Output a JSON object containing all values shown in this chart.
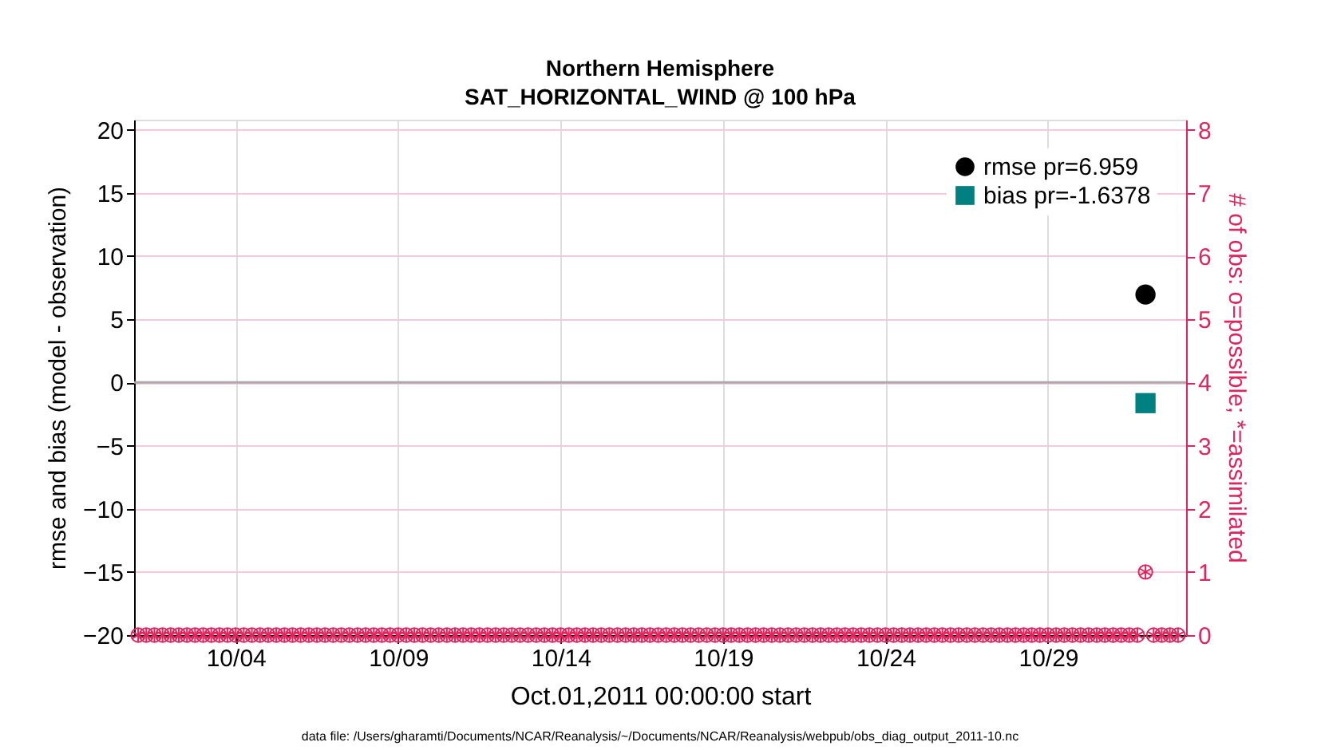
{
  "chart_data": {
    "type": "scatter",
    "title": "Northern Hemisphere",
    "subtitle": "SAT_HORIZONTAL_WIND @ 100 hPa",
    "xlabel": "Oct.01,2011 00:00:00 start",
    "ylabel": "rmse and bias (model - observation)",
    "y2label": "# of obs: o=possible; *=assimilated",
    "annotations": [
      "data file: /Users/gharamti/Documents/NCAR/Reanalysis/~/Documents/NCAR/Reanalysis/webpub/obs_diag_output_2011-10.nc"
    ],
    "x": [
      "2011-10-01T00:00",
      "2011-10-01T06:00",
      "2011-10-01T12:00",
      "2011-10-01T18:00",
      "2011-10-02T00:00",
      "2011-10-02T06:00",
      "2011-10-02T12:00",
      "2011-10-02T18:00",
      "2011-10-03T00:00",
      "2011-10-03T06:00",
      "2011-10-03T12:00",
      "2011-10-03T18:00",
      "2011-10-04T00:00",
      "2011-10-04T06:00",
      "2011-10-04T12:00",
      "2011-10-04T18:00",
      "2011-10-05T00:00",
      "2011-10-05T06:00",
      "2011-10-05T12:00",
      "2011-10-05T18:00",
      "2011-10-06T00:00",
      "2011-10-06T06:00",
      "2011-10-06T12:00",
      "2011-10-06T18:00",
      "2011-10-07T00:00",
      "2011-10-07T06:00",
      "2011-10-07T12:00",
      "2011-10-07T18:00",
      "2011-10-08T00:00",
      "2011-10-08T06:00",
      "2011-10-08T12:00",
      "2011-10-08T18:00",
      "2011-10-09T00:00",
      "2011-10-09T06:00",
      "2011-10-09T12:00",
      "2011-10-09T18:00",
      "2011-10-10T00:00",
      "2011-10-10T06:00",
      "2011-10-10T12:00",
      "2011-10-10T18:00",
      "2011-10-11T00:00",
      "2011-10-11T06:00",
      "2011-10-11T12:00",
      "2011-10-11T18:00",
      "2011-10-12T00:00",
      "2011-10-12T06:00",
      "2011-10-12T12:00",
      "2011-10-12T18:00",
      "2011-10-13T00:00",
      "2011-10-13T06:00",
      "2011-10-13T12:00",
      "2011-10-13T18:00",
      "2011-10-14T00:00",
      "2011-10-14T06:00",
      "2011-10-14T12:00",
      "2011-10-14T18:00",
      "2011-10-15T00:00",
      "2011-10-15T06:00",
      "2011-10-15T12:00",
      "2011-10-15T18:00",
      "2011-10-16T00:00",
      "2011-10-16T06:00",
      "2011-10-16T12:00",
      "2011-10-16T18:00",
      "2011-10-17T00:00",
      "2011-10-17T06:00",
      "2011-10-17T12:00",
      "2011-10-17T18:00",
      "2011-10-18T00:00",
      "2011-10-18T06:00",
      "2011-10-18T12:00",
      "2011-10-18T18:00",
      "2011-10-19T00:00",
      "2011-10-19T06:00",
      "2011-10-19T12:00",
      "2011-10-19T18:00",
      "2011-10-20T00:00",
      "2011-10-20T06:00",
      "2011-10-20T12:00",
      "2011-10-20T18:00",
      "2011-10-21T00:00",
      "2011-10-21T06:00",
      "2011-10-21T12:00",
      "2011-10-21T18:00",
      "2011-10-22T00:00",
      "2011-10-22T06:00",
      "2011-10-22T12:00",
      "2011-10-22T18:00",
      "2011-10-23T00:00",
      "2011-10-23T06:00",
      "2011-10-23T12:00",
      "2011-10-23T18:00",
      "2011-10-24T00:00",
      "2011-10-24T06:00",
      "2011-10-24T12:00",
      "2011-10-24T18:00",
      "2011-10-25T00:00",
      "2011-10-25T06:00",
      "2011-10-25T12:00",
      "2011-10-25T18:00",
      "2011-10-26T00:00",
      "2011-10-26T06:00",
      "2011-10-26T12:00",
      "2011-10-26T18:00",
      "2011-10-27T00:00",
      "2011-10-27T06:00",
      "2011-10-27T12:00",
      "2011-10-27T18:00",
      "2011-10-28T00:00",
      "2011-10-28T06:00",
      "2011-10-28T12:00",
      "2011-10-28T18:00",
      "2011-10-29T00:00",
      "2011-10-29T06:00",
      "2011-10-29T12:00",
      "2011-10-29T18:00",
      "2011-10-30T00:00",
      "2011-10-30T06:00",
      "2011-10-30T12:00",
      "2011-10-30T18:00",
      "2011-10-31T00:00",
      "2011-10-31T06:00",
      "2011-10-31T12:00",
      "2011-10-31T18:00",
      "2011-11-01T00:00",
      "2011-11-01T06:00",
      "2011-11-01T12:00",
      "2011-11-01T18:00",
      "2011-11-02T00:00"
    ],
    "series": [
      {
        "name": "rmse pr=6.959",
        "color": "#000000",
        "marker": "circle",
        "x": [
          "2011-11-01T00:00"
        ],
        "values": [
          6.959
        ]
      },
      {
        "name": "bias pr=-1.6378",
        "color": "#008080",
        "marker": "square",
        "x": [
          "2011-11-01T00:00"
        ],
        "values": [
          -1.6378
        ]
      },
      {
        "color": "#e0245e",
        "marker": "circle",
        "axis": "y2",
        "values": [
          0,
          0,
          0,
          0,
          0,
          0,
          0,
          0,
          0,
          0,
          0,
          0,
          0,
          0,
          0,
          0,
          0,
          0,
          0,
          0,
          0,
          0,
          0,
          0,
          0,
          0,
          0,
          0,
          0,
          0,
          0,
          0,
          0,
          0,
          0,
          0,
          0,
          0,
          0,
          0,
          0,
          0,
          0,
          0,
          0,
          0,
          0,
          0,
          0,
          0,
          0,
          0,
          0,
          0,
          0,
          0,
          0,
          0,
          0,
          0,
          0,
          0,
          0,
          0,
          0,
          0,
          0,
          0,
          0,
          0,
          0,
          0,
          0,
          0,
          0,
          0,
          0,
          0,
          0,
          0,
          0,
          0,
          0,
          0,
          0,
          0,
          0,
          0,
          0,
          0,
          0,
          0,
          0,
          0,
          0,
          0,
          0,
          0,
          0,
          0,
          0,
          0,
          0,
          0,
          0,
          0,
          0,
          0,
          0,
          0,
          0,
          0,
          0,
          0,
          0,
          0,
          0,
          0,
          0,
          0,
          0,
          0,
          0,
          0,
          1,
          0,
          0,
          0,
          0
        ]
      },
      {
        "color": "#e0245e",
        "marker": "cross",
        "axis": "y2",
        "values": [
          0,
          0,
          0,
          0,
          0,
          0,
          0,
          0,
          0,
          0,
          0,
          0,
          0,
          0,
          0,
          0,
          0,
          0,
          0,
          0,
          0,
          0,
          0,
          0,
          0,
          0,
          0,
          0,
          0,
          0,
          0,
          0,
          0,
          0,
          0,
          0,
          0,
          0,
          0,
          0,
          0,
          0,
          0,
          0,
          0,
          0,
          0,
          0,
          0,
          0,
          0,
          0,
          0,
          0,
          0,
          0,
          0,
          0,
          0,
          0,
          0,
          0,
          0,
          0,
          0,
          0,
          0,
          0,
          0,
          0,
          0,
          0,
          0,
          0,
          0,
          0,
          0,
          0,
          0,
          0,
          0,
          0,
          0,
          0,
          0,
          0,
          0,
          0,
          0,
          0,
          0,
          0,
          0,
          0,
          0,
          0,
          0,
          0,
          0,
          0,
          0,
          0,
          0,
          0,
          0,
          0,
          0,
          0,
          0,
          0,
          0,
          0,
          0,
          0,
          0,
          0,
          0,
          0,
          0,
          0,
          0,
          0,
          0,
          0,
          1,
          0,
          0,
          0,
          0
        ]
      }
    ],
    "xlim": [
      "2011-09-30T21:00",
      "2011-11-02T06:00"
    ],
    "xticks": [
      {
        "value": "2011-10-04T00:00",
        "label": "10/04"
      },
      {
        "value": "2011-10-09T00:00",
        "label": "10/09"
      },
      {
        "value": "2011-10-14T00:00",
        "label": "10/14"
      },
      {
        "value": "2011-10-19T00:00",
        "label": "10/19"
      },
      {
        "value": "2011-10-24T00:00",
        "label": "10/24"
      },
      {
        "value": "2011-10-29T00:00",
        "label": "10/29"
      }
    ],
    "ylim": [
      -20,
      20.8
    ],
    "yticks": [
      -20,
      -15,
      -10,
      -5,
      0,
      5,
      10,
      15,
      20
    ],
    "y2lim": [
      0,
      8.16
    ],
    "y2ticks": [
      0,
      1,
      2,
      3,
      4,
      5,
      6,
      7,
      8
    ],
    "ref_lines": [
      {
        "axis": "y",
        "value": 0,
        "color": "#aaaaaa"
      }
    ],
    "grid": true,
    "legend": "top right"
  }
}
